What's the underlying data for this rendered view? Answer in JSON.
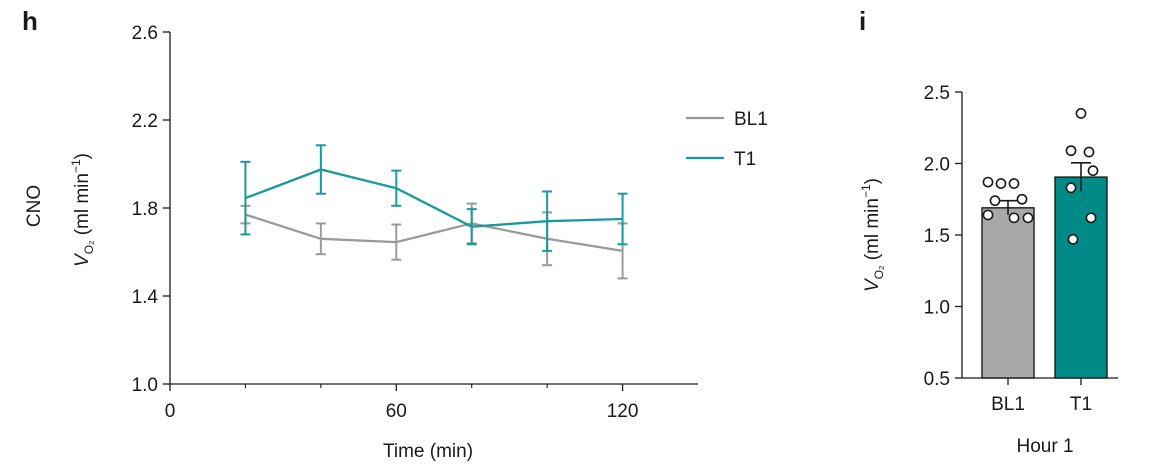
{
  "chart_data": [
    {
      "type": "line",
      "panel_label": "h",
      "row_label": "CNO",
      "ylabel": "V",
      "ylabel_sub": "O₂",
      "ylabel_units": "(ml min",
      "ylabel_units_sup": "−1",
      "ylabel_units_close": ")",
      "xlabel": "Time (min)",
      "xlim": [
        0,
        140
      ],
      "ylim": [
        1.0,
        2.6
      ],
      "xticks": [
        "0",
        "60",
        "120"
      ],
      "yticks": [
        "1.0",
        "1.4",
        "1.8",
        "2.2",
        "2.6"
      ],
      "colors": {
        "BL1": "#9a9a9a",
        "T1": "#1a9a99"
      },
      "series": [
        {
          "name": "BL1",
          "x": [
            20,
            40,
            60,
            80,
            100,
            120
          ],
          "y": [
            1.77,
            1.66,
            1.645,
            1.73,
            1.66,
            1.605
          ],
          "err": [
            0.04,
            0.07,
            0.08,
            0.09,
            0.12,
            0.125
          ]
        },
        {
          "name": "T1",
          "x": [
            20,
            40,
            60,
            80,
            100,
            120
          ],
          "y": [
            1.845,
            1.975,
            1.89,
            1.715,
            1.74,
            1.75
          ],
          "err": [
            0.165,
            0.11,
            0.08,
            0.08,
            0.135,
            0.115
          ]
        }
      ],
      "legend": [
        "BL1",
        "T1"
      ]
    },
    {
      "type": "bar",
      "panel_label": "i",
      "ylabel": "V",
      "ylabel_sub": "O₂",
      "ylabel_units": "(ml min",
      "ylabel_units_sup": "−1",
      "ylabel_units_close": ")",
      "xlabel": "Hour 1",
      "categories": [
        "BL1",
        "T1"
      ],
      "values": [
        1.69,
        1.905
      ],
      "errors": [
        0.05,
        0.1
      ],
      "colors": [
        "#a8a8a8",
        "#008a87"
      ],
      "ylim": [
        0.5,
        2.5
      ],
      "yticks": [
        "0.5",
        "1.0",
        "1.5",
        "2.0",
        "2.5"
      ],
      "points": [
        [
          1.87,
          1.86,
          1.86,
          1.75,
          1.74,
          1.64,
          1.62,
          1.62
        ],
        [
          2.35,
          2.09,
          2.08,
          1.95,
          1.83,
          1.62,
          1.47
        ]
      ]
    }
  ]
}
